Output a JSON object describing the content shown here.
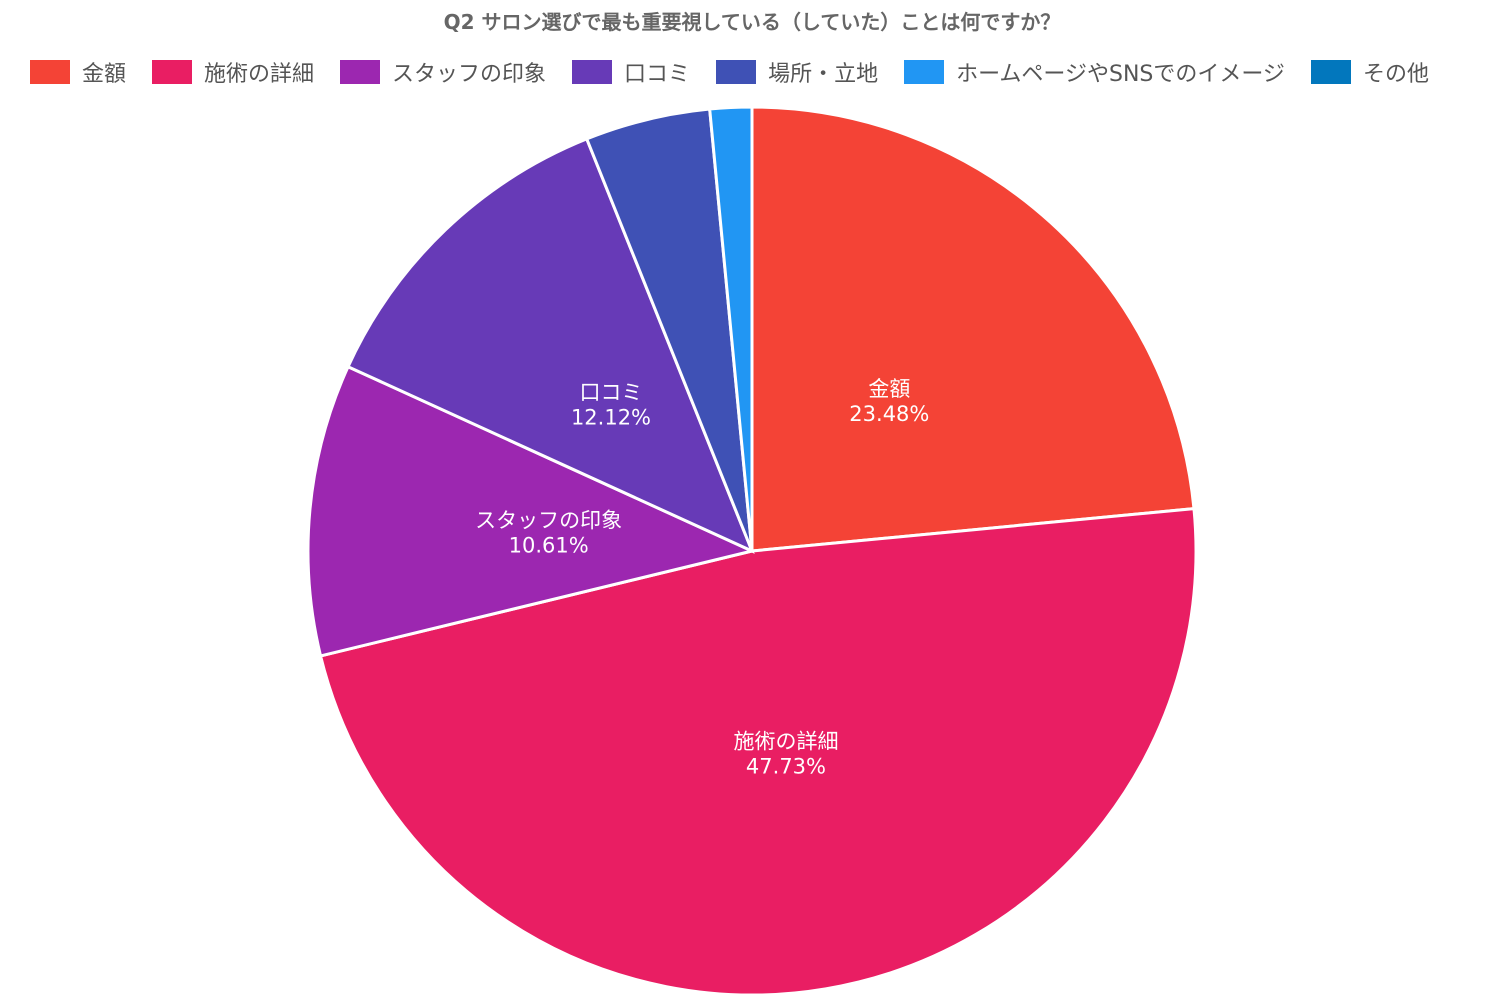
{
  "chart_data": {
    "type": "pie",
    "title": "Q2 サロン選びで最も重要視している（していた）ことは何ですか？",
    "start_angle": "12 o'clock, clockwise",
    "legend_position": "top",
    "slices": [
      {
        "label": "金額",
        "value": 23.48,
        "display": "23.48%",
        "color": "#F44336",
        "show_label": true
      },
      {
        "label": "施術の詳細",
        "value": 47.73,
        "display": "47.73%",
        "color": "#E91E63",
        "show_label": true
      },
      {
        "label": "スタッフの印象",
        "value": 10.61,
        "display": "10.61%",
        "color": "#9C27B0",
        "show_label": true
      },
      {
        "label": "口コミ",
        "value": 12.12,
        "display": "12.12%",
        "color": "#673AB7",
        "show_label": true
      },
      {
        "label": "場所・立地",
        "value": 4.55,
        "display": "4.55%",
        "color": "#3F51B5",
        "show_label": false
      },
      {
        "label": "ホームページやSNSでのイメージ",
        "value": 1.52,
        "display": "1.52%",
        "color": "#2196F3",
        "show_label": false
      },
      {
        "label": "その他",
        "value": 0,
        "display": "0%",
        "color": "#0277BD",
        "show_label": false
      }
    ]
  }
}
